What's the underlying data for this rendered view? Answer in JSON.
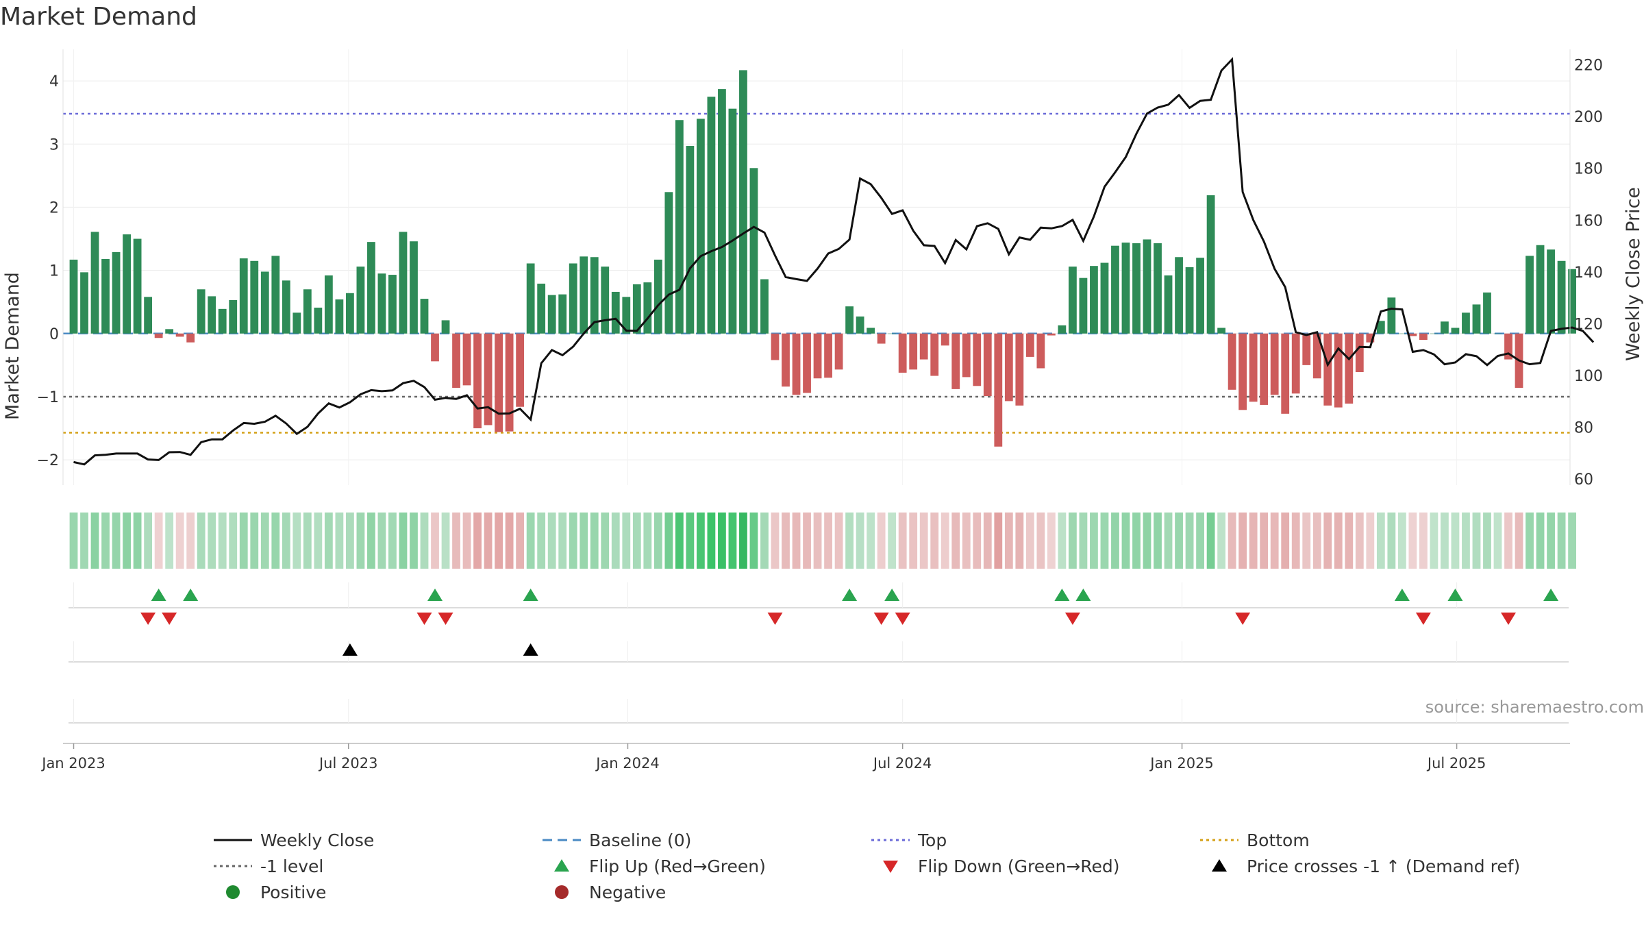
{
  "title": "Market Demand",
  "source": "source: sharemaestro.com",
  "chart_data": {
    "type": "bar+line",
    "title": "Market Demand",
    "left_axis": {
      "label": "Market Demand",
      "range": [
        -2.4,
        4.5
      ],
      "ticks": [
        -2,
        -1,
        0,
        1,
        2,
        3,
        4
      ],
      "tick_labels": [
        "−2",
        "−1",
        "0",
        "1",
        "2",
        "3",
        "4"
      ]
    },
    "right_axis": {
      "label": "Weekly Close Price",
      "range": [
        57.6,
        226
      ],
      "ticks": [
        60,
        80,
        100,
        120,
        140,
        160,
        180,
        200,
        220
      ],
      "tick_labels": [
        "60",
        "80",
        "100",
        "120",
        "140",
        "160",
        "180",
        "200",
        "220"
      ]
    },
    "x_axis": {
      "start_week": -1,
      "end_week": 140.8,
      "ticks": [
        {
          "week": 0,
          "label": "Jan 2023"
        },
        {
          "week": 25.86,
          "label": "Jul 2023"
        },
        {
          "week": 52.14,
          "label": "Jan 2024"
        },
        {
          "week": 78,
          "label": "Jul 2024"
        },
        {
          "week": 104.29,
          "label": "Jan 2025"
        },
        {
          "week": 130.14,
          "label": "Jul 2025"
        }
      ]
    },
    "reference_lines": {
      "top": 3.48,
      "bottom": -1.57,
      "minus_one": -1,
      "baseline": 0
    },
    "demand": [
      1.17,
      0.97,
      1.61,
      1.18,
      1.29,
      1.57,
      1.5,
      0.58,
      -0.07,
      0.07,
      -0.05,
      -0.14,
      0.7,
      0.59,
      0.39,
      0.53,
      1.19,
      1.15,
      0.98,
      1.23,
      0.84,
      0.33,
      0.7,
      0.41,
      0.92,
      0.54,
      0.64,
      1.06,
      1.45,
      0.95,
      0.93,
      1.61,
      1.46,
      0.55,
      -0.44,
      0.21,
      -0.86,
      -0.82,
      -1.5,
      -1.45,
      -1.56,
      -1.55,
      -1.16,
      1.11,
      0.79,
      0.61,
      0.62,
      1.11,
      1.22,
      1.21,
      1.06,
      0.66,
      0.58,
      0.78,
      0.81,
      1.17,
      2.24,
      3.38,
      2.97,
      3.4,
      3.75,
      3.87,
      3.56,
      4.17,
      2.62,
      0.86,
      -0.42,
      -0.84,
      -0.97,
      -0.94,
      -0.71,
      -0.7,
      -0.57,
      0.43,
      0.27,
      0.09,
      -0.16,
      0,
      -0.62,
      -0.57,
      -0.41,
      -0.67,
      -0.19,
      -0.88,
      -0.69,
      -0.83,
      -0.99,
      -1.79,
      -1.07,
      -1.14,
      -0.37,
      -0.55,
      -0.03,
      0.13,
      1.06,
      0.88,
      1.07,
      1.12,
      1.39,
      1.44,
      1.43,
      1.49,
      1.43,
      0.92,
      1.21,
      1.05,
      1.2,
      2.19,
      0.09,
      -0.89,
      -1.21,
      -1.08,
      -1.13,
      -0.97,
      -1.27,
      -0.95,
      -0.5,
      -0.71,
      -1.14,
      -1.17,
      -1.11,
      -0.61,
      -0.14,
      0.2,
      0.57,
      0,
      -0.04,
      -0.1,
      0,
      0.19,
      0.09,
      0.33,
      0.46,
      0.65,
      0,
      -0.41,
      -0.86,
      1.23,
      1.4,
      1.33,
      1.15,
      1.02
    ],
    "weekly_close": [
      66.5,
      65.6,
      69.1,
      69.3,
      69.8,
      69.8,
      69.8,
      67.5,
      67.3,
      70.3,
      70.4,
      69.3,
      74.2,
      75.3,
      75.3,
      78.7,
      81.6,
      81.3,
      82.1,
      84.4,
      81.4,
      77.4,
      80.1,
      85.3,
      89.2,
      87.6,
      89.6,
      92.7,
      94.3,
      93.9,
      94.2,
      97,
      97.9,
      95.5,
      90.6,
      91.3,
      90.9,
      92.3,
      87.2,
      87.7,
      85.2,
      85.3,
      87.1,
      82.9,
      104.7,
      109.8,
      107.8,
      111.1,
      116.2,
      120.6,
      121.3,
      121.9,
      117.3,
      117.2,
      122,
      127.1,
      131.2,
      133.1,
      141.4,
      146.1,
      148,
      149.6,
      152.1,
      154.8,
      157.4,
      155.2,
      146.3,
      138,
      137.2,
      136.5,
      141.3,
      147.1,
      148.9,
      152.5,
      176.1,
      173.9,
      168.6,
      162.4,
      163.8,
      155.9,
      150.3,
      150,
      143.4,
      152.3,
      148.7,
      157.7,
      158.8,
      156.6,
      146.8,
      153.3,
      152.4,
      157.1,
      156.8,
      157.7,
      160.1,
      152,
      161.4,
      172.9,
      178.5,
      184.4,
      193.4,
      201.2,
      203.5,
      204.6,
      208.3,
      203.4,
      206.1,
      206.5,
      217.8,
      222.1,
      170.9,
      160,
      151.7,
      141.2,
      134.1,
      116.7,
      115.6,
      116.7,
      104.1,
      110.4,
      106.3,
      111,
      110.9,
      124.7,
      125.8,
      125.5,
      109.1,
      109.8,
      108.1,
      104.3,
      105,
      108.2,
      107.4,
      104,
      107.5,
      108.5,
      105.8,
      104.3,
      104.8,
      117.2,
      118,
      118.5,
      117.2,
      112.8
    ],
    "flip_up_weeks": [
      8,
      11,
      34,
      43,
      73,
      77,
      93,
      95,
      125,
      130,
      139
    ],
    "flip_down_weeks": [
      7,
      9,
      33,
      35,
      66,
      76,
      78,
      94,
      110,
      127,
      135
    ],
    "price_cross_weeks": [
      26,
      43
    ],
    "legend": [
      {
        "label": "Weekly Close",
        "symbol": "line-black"
      },
      {
        "label": "Baseline (0)",
        "symbol": "dash-blue"
      },
      {
        "label": "Top",
        "symbol": "dot-purple"
      },
      {
        "label": "Bottom",
        "symbol": "dot-orange"
      },
      {
        "label": "-1 level",
        "symbol": "dot-gray"
      },
      {
        "label": "Flip Up (Red→Green)",
        "symbol": "tri-up-green"
      },
      {
        "label": "Flip Down (Green→Red)",
        "symbol": "tri-down-red"
      },
      {
        "label": "Price crosses -1 ↑ (Demand ref)",
        "symbol": "tri-up-black"
      },
      {
        "label": "Positive",
        "symbol": "circle-green"
      },
      {
        "label": "Negative",
        "symbol": "circle-red"
      }
    ]
  },
  "colors": {
    "positive": "#2e8b57",
    "negative": "#cd5c5c",
    "line": "#111111",
    "top": "#6a6ad8",
    "bottom": "#d4a017",
    "minus_one": "#666666",
    "baseline": "#4a8ac4"
  }
}
